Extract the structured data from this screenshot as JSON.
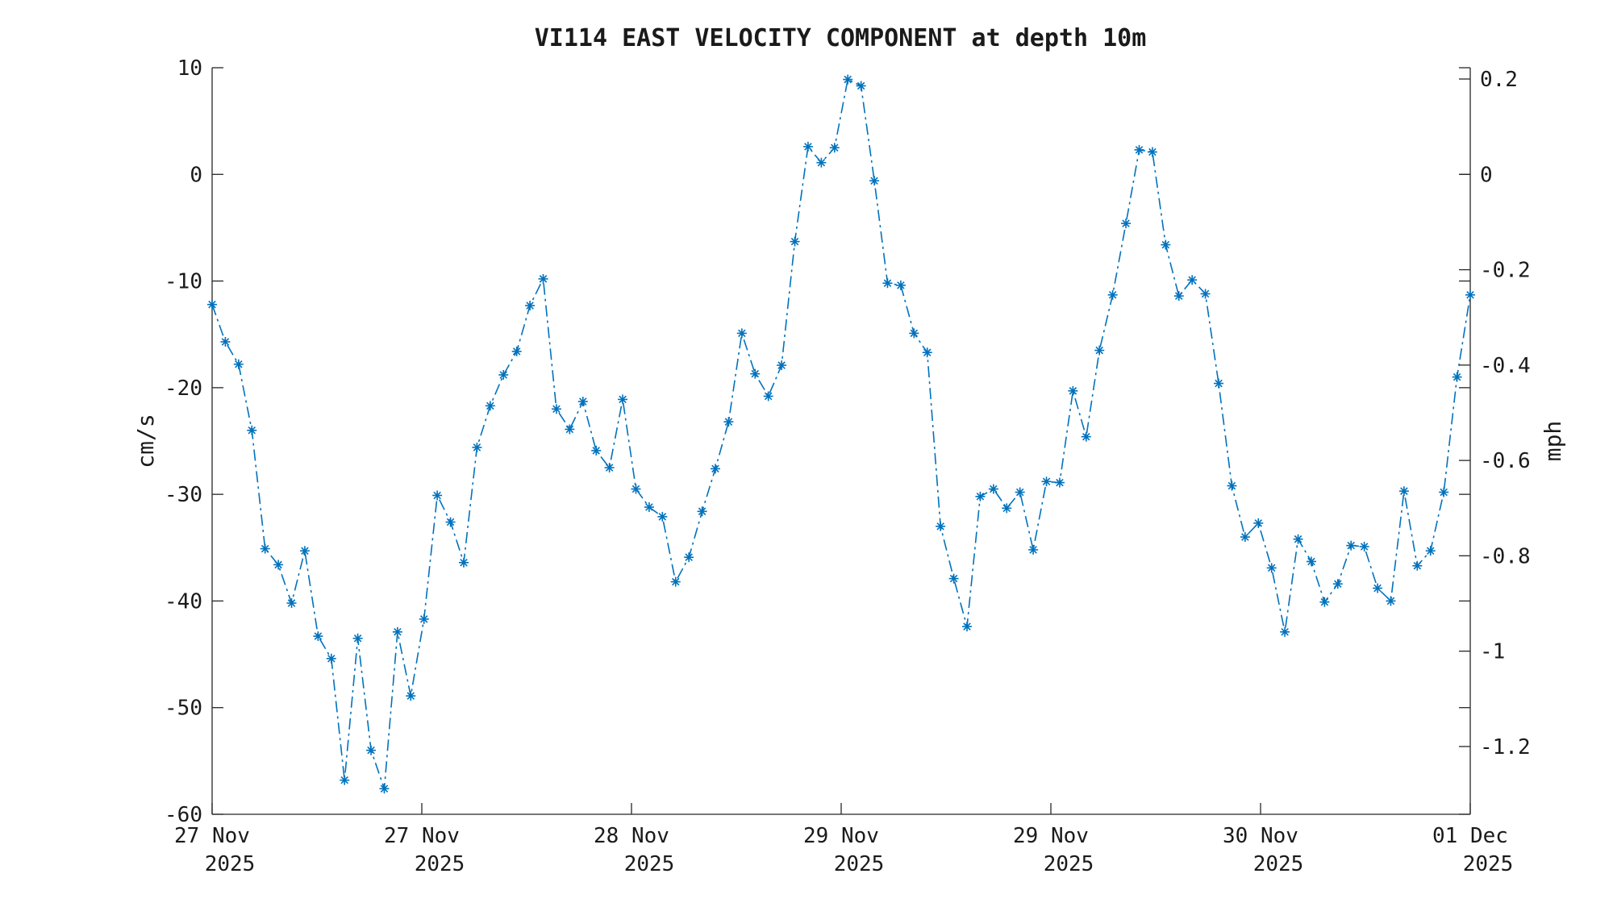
{
  "chart_data": {
    "type": "line",
    "title": "VI114 EAST VELOCITY COMPONENT at depth 10m",
    "ylabel": "cm/s",
    "ylabel_right": "mph",
    "ylim": [
      -60,
      10
    ],
    "yticks": [
      "10",
      "0",
      "-10",
      "-20",
      "-30",
      "-40",
      "-50",
      "-60"
    ],
    "ytick_values": [
      10,
      0,
      -10,
      -20,
      -30,
      -40,
      -50,
      -60
    ],
    "right_yticks": [
      "0.2",
      "0",
      "-0.2",
      "-0.4",
      "-0.6",
      "-0.8",
      "-1",
      "-1.2"
    ],
    "right_ytick_values": [
      0.2,
      0,
      -0.2,
      -0.4,
      -0.6,
      -0.8,
      -1,
      -1.2
    ],
    "xticks": [
      {
        "line1": "27 Nov",
        "line2": "2025",
        "x": 0
      },
      {
        "line1": "27 Nov",
        "line2": "2025",
        "x": 16
      },
      {
        "line1": "28 Nov",
        "line2": "2025",
        "x": 32
      },
      {
        "line1": "29 Nov",
        "line2": "2025",
        "x": 48
      },
      {
        "line1": "29 Nov",
        "line2": "2025",
        "x": 64
      },
      {
        "line1": "30 Nov",
        "line2": "2025",
        "x": 80
      },
      {
        "line1": "01 Dec",
        "line2": "2025",
        "x": 96
      }
    ],
    "xlim": [
      0,
      96
    ],
    "grid": false,
    "series": [
      {
        "color": "#0072BD",
        "marker": "asterisk",
        "linestyle": "dash-dot",
        "values": [
          -12.2,
          -15.7,
          -17.8,
          -24.0,
          -35.1,
          -36.6,
          -40.2,
          -35.3,
          -43.3,
          -45.4,
          -56.8,
          -43.5,
          -54.0,
          -57.6,
          -42.9,
          -48.9,
          -41.7,
          -30.1,
          -32.6,
          -36.4,
          -25.6,
          -21.7,
          -18.8,
          -16.6,
          -12.3,
          -9.8,
          -22.0,
          -23.9,
          -21.3,
          -25.9,
          -27.5,
          -21.1,
          -29.5,
          -31.2,
          -32.1,
          -38.2,
          -35.9,
          -31.6,
          -27.6,
          -23.2,
          -14.9,
          -18.7,
          -20.8,
          -17.9,
          -6.3,
          2.6,
          1.1,
          2.5,
          8.9,
          8.3,
          -0.6,
          -10.2,
          -10.4,
          -14.9,
          -16.7,
          -33.0,
          -37.9,
          -42.4,
          -30.2,
          -29.5,
          -31.3,
          -29.8,
          -35.2,
          -28.8,
          -28.9,
          -20.3,
          -24.6,
          -16.5,
          -11.3,
          -4.6,
          2.3,
          2.1,
          -6.6,
          -11.4,
          -9.9,
          -11.2,
          -19.6,
          -29.2,
          -34.0,
          -32.7,
          -36.9,
          -42.9,
          -34.2,
          -36.3,
          -40.1,
          -38.4,
          -34.8,
          -34.9,
          -38.8,
          -40.0,
          -29.7,
          -36.7,
          -35.3,
          -29.8,
          -19.0,
          -11.3
        ]
      }
    ]
  }
}
